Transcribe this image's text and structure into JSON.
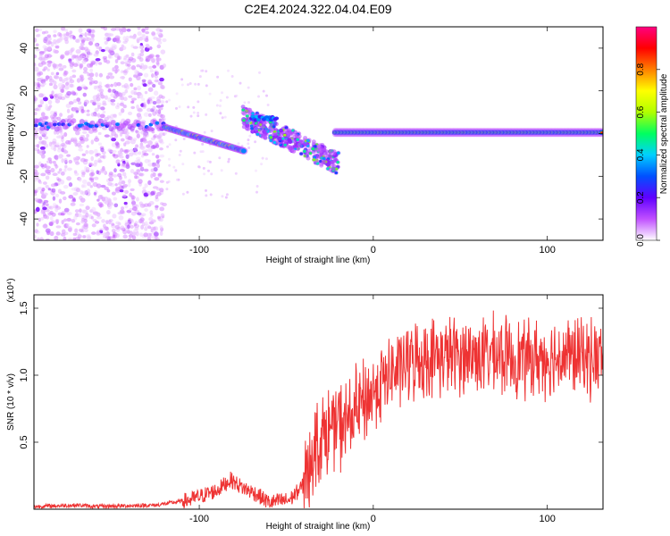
{
  "title": "C2E4.2024.322.04.04.E09",
  "chart_data": [
    {
      "type": "heatmap",
      "xlabel": "Height of straight line (km)",
      "ylabel": "Frequency (Hz)",
      "xlim": [
        -195,
        132
      ],
      "ylim": [
        -50,
        50
      ],
      "x_ticks": [
        -100,
        0,
        100
      ],
      "y_ticks": [
        -40,
        -20,
        0,
        20,
        40
      ],
      "colorbar": {
        "label": "Normalized spectral amplitude",
        "range": [
          0,
          1
        ],
        "ticks": [
          "0.0",
          "0.2",
          "0.4",
          "0.6",
          "0.8"
        ],
        "colors": [
          "#ffffff",
          "#c050ff",
          "#6000ff",
          "#0050ff",
          "#00d0ff",
          "#00ff60",
          "#b0ff00",
          "#ffff00",
          "#ff8000",
          "#ff0000",
          "#ff0080"
        ]
      }
    },
    {
      "type": "line",
      "xlabel": "Height of straight line (km)",
      "ylabel": "SNR (10 * v/v)",
      "y_multiplier": "(x10⁴)",
      "xlim": [
        -195,
        132
      ],
      "ylim": [
        0,
        1.6
      ],
      "x_ticks": [
        -100,
        0,
        100
      ],
      "y_ticks": [
        "0.5",
        "1.0",
        "1.5"
      ],
      "color": "#ee3333",
      "profile": [
        {
          "x": -195,
          "y": 0.02
        },
        {
          "x": -170,
          "y": 0.03
        },
        {
          "x": -160,
          "y": 0.02
        },
        {
          "x": -125,
          "y": 0.03
        },
        {
          "x": -105,
          "y": 0.07
        },
        {
          "x": -90,
          "y": 0.14
        },
        {
          "x": -82,
          "y": 0.22
        },
        {
          "x": -75,
          "y": 0.16
        },
        {
          "x": -68,
          "y": 0.12
        },
        {
          "x": -60,
          "y": 0.05
        },
        {
          "x": -48,
          "y": 0.07
        },
        {
          "x": -40,
          "y": 0.18
        },
        {
          "x": -35,
          "y": 0.45
        },
        {
          "x": -25,
          "y": 0.6
        },
        {
          "x": -15,
          "y": 0.65
        },
        {
          "x": -5,
          "y": 0.8
        },
        {
          "x": 5,
          "y": 0.95
        },
        {
          "x": 15,
          "y": 1.05
        },
        {
          "x": 25,
          "y": 1.12
        },
        {
          "x": 45,
          "y": 1.15
        },
        {
          "x": 70,
          "y": 1.15
        },
        {
          "x": 90,
          "y": 1.12
        },
        {
          "x": 110,
          "y": 1.15
        },
        {
          "x": 132,
          "y": 1.12
        }
      ]
    }
  ]
}
